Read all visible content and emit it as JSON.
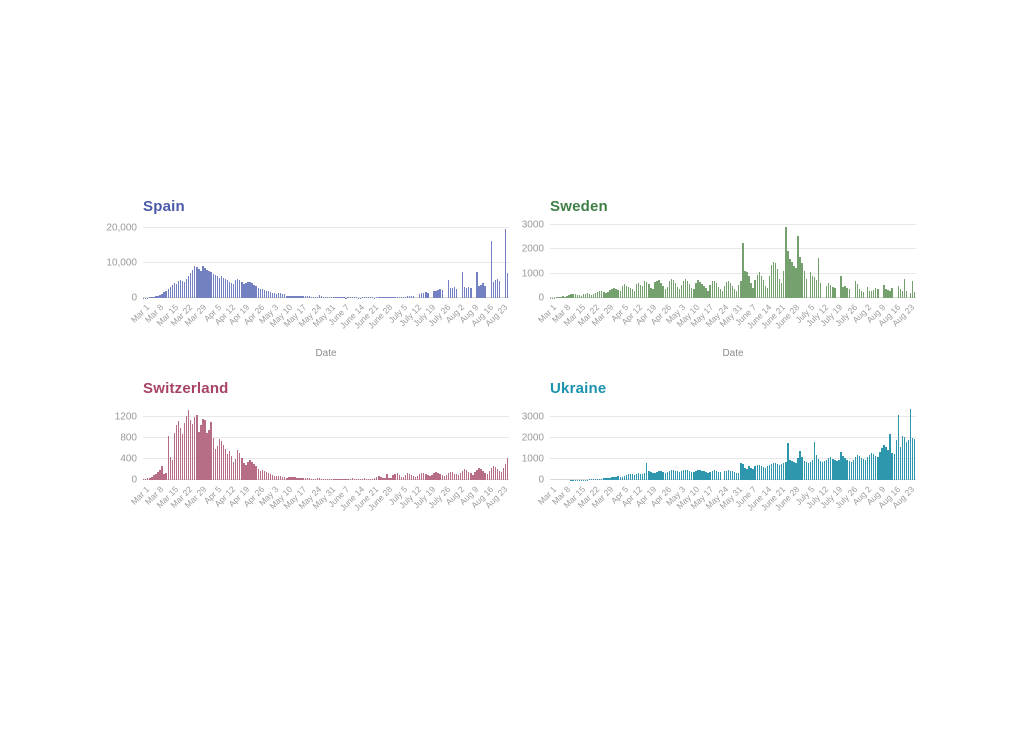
{
  "canvas": {
    "background": "#ffffff"
  },
  "axis_shared": {
    "x_title": "Date"
  },
  "chart_data": [
    {
      "type": "bar",
      "title": "Spain",
      "xlabel": "Date",
      "ylabel": "",
      "title_color": "#4a5aa8",
      "bar_color": "#7381c3",
      "grid": "horizontal",
      "legend": "none",
      "x_unit": "day",
      "ylim": [
        0,
        21000
      ],
      "y_ticks": [
        0,
        10000,
        20000
      ],
      "y_tick_labels": [
        "0",
        "10,000",
        "20,000"
      ],
      "x_tick_labels": [
        "Mar 1",
        "Mar 8",
        "Mar 15",
        "Mar 22",
        "Mar 29",
        "Apr 5",
        "Apr 12",
        "Apr 19",
        "Apr 26",
        "May 3",
        "May 10",
        "May 17",
        "May 24",
        "May 31",
        "June 7",
        "June 14",
        "June 21",
        "June 28",
        "July 5",
        "July 12",
        "July 19",
        "July 26",
        "Aug 2",
        "Aug 9",
        "Aug 16",
        "Aug 23"
      ],
      "values": [
        50,
        80,
        120,
        180,
        250,
        350,
        500,
        650,
        900,
        1200,
        1700,
        2100,
        2700,
        3200,
        3800,
        4300,
        4000,
        4800,
        5300,
        5000,
        4700,
        5600,
        6400,
        7300,
        8200,
        9100,
        8800,
        8300,
        7900,
        9200,
        8600,
        8000,
        7700,
        7400,
        7000,
        6500,
        6200,
        5900,
        6300,
        5900,
        5500,
        5100,
        4700,
        4300,
        4000,
        5200,
        5600,
        5100,
        4600,
        4100,
        4300,
        4500,
        4600,
        4200,
        3800,
        3400,
        3000,
        2700,
        2500,
        2300,
        2100,
        1900,
        1700,
        1500,
        1300,
        1200,
        1400,
        1300,
        1200,
        1100,
        700,
        600,
        500,
        600,
        700,
        650,
        550,
        450,
        500,
        600,
        500,
        450,
        400,
        350,
        300,
        400,
        900,
        450,
        350,
        300,
        350,
        300,
        250,
        200,
        300,
        350,
        300,
        250,
        150,
        100,
        150,
        200,
        250,
        200,
        150,
        100,
        120,
        160,
        200,
        250,
        300,
        200,
        150,
        100,
        150,
        200,
        250,
        300,
        250,
        200,
        150,
        200,
        250,
        300,
        250,
        200,
        300,
        200,
        350,
        450,
        550,
        650,
        450,
        0,
        0,
        1150,
        1350,
        1500,
        1650,
        1400,
        0,
        0,
        1900,
        2150,
        2400,
        2600,
        2250,
        0,
        0,
        5100,
        2800,
        2900,
        3100,
        2700,
        0,
        0,
        7600,
        3200,
        3000,
        3300,
        2900,
        0,
        0,
        7400,
        3500,
        3800,
        4200,
        3600,
        0,
        0,
        16500,
        4700,
        5200,
        5500,
        4800,
        0,
        0,
        19900,
        7200
      ]
    },
    {
      "type": "bar",
      "title": "Sweden",
      "xlabel": "Date",
      "ylabel": "",
      "title_color": "#3f7f45",
      "bar_color": "#74a16d",
      "grid": "horizontal",
      "legend": "none",
      "x_unit": "day",
      "ylim": [
        0,
        3000
      ],
      "y_ticks": [
        0,
        1000,
        2000,
        3000
      ],
      "y_tick_labels": [
        "0",
        "1000",
        "2000",
        "3000"
      ],
      "x_tick_labels": [
        "Mar 1",
        "Mar 8",
        "Mar 15",
        "Mar 22",
        "Mar 29",
        "Apr 5",
        "Apr 12",
        "Apr 19",
        "Apr 26",
        "May 3",
        "May 10",
        "May 17",
        "May 24",
        "May 31",
        "June 7",
        "June 14",
        "June 21",
        "June 28",
        "July 5",
        "July 12",
        "July 19",
        "July 26",
        "Aug 2",
        "Aug 9",
        "Aug 16",
        "Aug 23"
      ],
      "values": [
        10,
        15,
        20,
        30,
        40,
        60,
        80,
        60,
        100,
        130,
        160,
        170,
        150,
        130,
        110,
        90,
        150,
        180,
        200,
        160,
        120,
        180,
        220,
        260,
        300,
        280,
        240,
        200,
        250,
        310,
        360,
        420,
        380,
        330,
        280,
        500,
        560,
        480,
        440,
        400,
        350,
        300,
        560,
        620,
        540,
        480,
        700,
        650,
        580,
        400,
        350,
        640,
        700,
        750,
        600,
        500,
        380,
        450,
        680,
        790,
        720,
        600,
        450,
        380,
        550,
        700,
        780,
        680,
        560,
        420,
        350,
        600,
        720,
        650,
        580,
        500,
        400,
        300,
        550,
        680,
        700,
        600,
        450,
        350,
        280,
        500,
        650,
        700,
        620,
        480,
        350,
        300,
        550,
        700,
        2270,
        1100,
        1050,
        900,
        600,
        400,
        750,
        950,
        1050,
        900,
        750,
        500,
        400,
        900,
        1350,
        1480,
        1420,
        1200,
        800,
        600,
        1100,
        2900,
        1950,
        1600,
        1500,
        1300,
        1250,
        2530,
        1700,
        1450,
        1100,
        800,
        0,
        1050,
        900,
        850,
        750,
        1650,
        600,
        0,
        0,
        500,
        600,
        550,
        450,
        400,
        0,
        0,
        920,
        450,
        500,
        430,
        380,
        0,
        0,
        700,
        560,
        350,
        300,
        250,
        0,
        450,
        300,
        280,
        330,
        420,
        350,
        0,
        0,
        550,
        380,
        320,
        300,
        420,
        0,
        0,
        480,
        350,
        300,
        800,
        300,
        0,
        200,
        680,
        250
      ]
    },
    {
      "type": "bar",
      "title": "Switzerland",
      "xlabel": "",
      "ylabel": "",
      "title_color": "#a84367",
      "bar_color": "#b76d86",
      "grid": "horizontal",
      "legend": "none",
      "x_unit": "day",
      "ylim": [
        0,
        1400
      ],
      "y_ticks": [
        0,
        400,
        800,
        1200
      ],
      "y_tick_labels": [
        "0",
        "400",
        "800",
        "1200"
      ],
      "x_tick_labels": [
        "Mar 1",
        "Mar 8",
        "Mar 15",
        "Mar 22",
        "Mar 29",
        "Apr 5",
        "Apr 12",
        "Apr 19",
        "Apr 26",
        "May 3",
        "May 10",
        "May 17",
        "May 24",
        "May 31",
        "June 7",
        "June 14",
        "June 21",
        "June 28",
        "July 5",
        "July 12",
        "July 19",
        "July 26",
        "Aug 2",
        "Aug 9",
        "Aug 16",
        "Aug 23"
      ],
      "values": [
        10,
        20,
        30,
        40,
        60,
        90,
        120,
        150,
        200,
        260,
        110,
        130,
        850,
        440,
        380,
        900,
        1060,
        1130,
        1000,
        890,
        1100,
        1230,
        1350,
        1160,
        1080,
        1200,
        1240,
        930,
        1050,
        1170,
        1160,
        900,
        960,
        1120,
        810,
        590,
        650,
        780,
        740,
        680,
        590,
        500,
        560,
        470,
        350,
        410,
        580,
        510,
        420,
        330,
        290,
        340,
        390,
        350,
        300,
        260,
        220,
        180,
        200,
        170,
        150,
        130,
        110,
        90,
        75,
        80,
        70,
        85,
        60,
        50,
        45,
        55,
        65,
        60,
        50,
        40,
        35,
        30,
        35,
        40,
        45,
        35,
        25,
        20,
        18,
        30,
        36,
        28,
        22,
        18,
        15,
        20,
        15,
        20,
        25,
        18,
        22,
        28,
        20,
        15,
        18,
        25,
        30,
        22,
        18,
        12,
        18,
        25,
        35,
        28,
        22,
        17,
        20,
        35,
        55,
        70,
        62,
        45,
        40,
        110,
        35,
        45,
        90,
        115,
        130,
        95,
        55,
        65,
        95,
        130,
        110,
        95,
        70,
        60,
        80,
        120,
        140,
        130,
        110,
        90,
        70,
        95,
        125,
        150,
        135,
        115,
        95,
        80,
        105,
        130,
        160,
        145,
        120,
        110,
        90,
        130,
        180,
        210,
        185,
        160,
        130,
        105,
        150,
        200,
        230,
        205,
        175,
        140,
        120,
        170,
        240,
        270,
        245,
        210,
        180,
        160,
        230,
        300,
        420
      ]
    },
    {
      "type": "bar",
      "title": "Ukraine",
      "xlabel": "",
      "ylabel": "",
      "title_color": "#1b93ae",
      "bar_color": "#2f97ad",
      "grid": "horizontal",
      "legend": "none",
      "x_unit": "day",
      "ylim": [
        0,
        3500
      ],
      "y_ticks": [
        0,
        1000,
        2000,
        3000
      ],
      "y_tick_labels": [
        "0",
        "1000",
        "2000",
        "3000"
      ],
      "x_tick_labels": [
        "Mar 1",
        "Mar 8",
        "Mar 15",
        "Mar 22",
        "Mar 29",
        "Apr 5",
        "Apr 12",
        "Apr 19",
        "Apr 26",
        "May 3",
        "May 10",
        "May 17",
        "May 24",
        "May 31",
        "June 7",
        "June 14",
        "June 21",
        "June 28",
        "July 5",
        "July 12",
        "July 19",
        "July 26",
        "Aug 2",
        "Aug 9",
        "Aug 16",
        "Aug 23"
      ],
      "values": [
        0,
        0,
        1,
        0,
        1,
        2,
        1,
        2,
        1,
        3,
        5,
        4,
        6,
        8,
        10,
        12,
        15,
        18,
        22,
        27,
        35,
        41,
        47,
        55,
        62,
        70,
        80,
        90,
        100,
        110,
        125,
        135,
        150,
        175,
        160,
        140,
        180,
        220,
        270,
        310,
        280,
        250,
        290,
        330,
        300,
        280,
        320,
        800,
        420,
        380,
        350,
        330,
        370,
        410,
        440,
        400,
        360,
        390,
        430,
        460,
        480,
        450,
        420,
        390,
        430,
        470,
        500,
        460,
        430,
        400,
        380,
        420,
        460,
        490,
        450,
        420,
        390,
        360,
        400,
        440,
        470,
        430,
        400,
        370,
        0,
        420,
        450,
        480,
        440,
        410,
        380,
        350,
        340,
        800,
        750,
        600,
        550,
        650,
        590,
        520,
        680,
        740,
        700,
        660,
        620,
        580,
        650,
        710,
        780,
        830,
        800,
        760,
        700,
        750,
        820,
        880,
        1780,
        950,
        900,
        850,
        800,
        1050,
        1400,
        1100,
        900,
        850,
        800,
        870,
        950,
        1800,
        1200,
        1000,
        900,
        850,
        900,
        980,
        1050,
        1100,
        1000,
        950,
        900,
        970,
        1350,
        1150,
        1050,
        980,
        920,
        880,
        960,
        1100,
        1200,
        1150,
        1050,
        1000,
        950,
        1100,
        1200,
        1300,
        1250,
        1150,
        1100,
        1350,
        1550,
        1700,
        1600,
        1450,
        2200,
        1300,
        1250,
        1900,
        3100,
        1600,
        2100,
        2050,
        1800,
        1900,
        3400,
        2000,
        1950
      ]
    }
  ]
}
